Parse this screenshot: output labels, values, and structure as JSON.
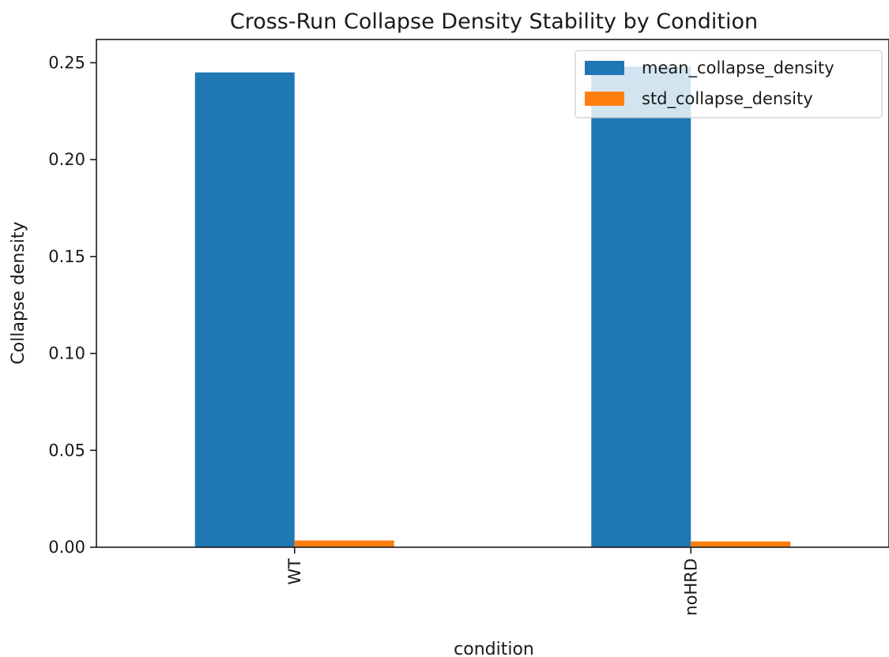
{
  "chart_data": {
    "type": "bar",
    "title": "Cross-Run Collapse Density Stability by Condition",
    "xlabel": "condition",
    "ylabel": "Collapse density",
    "categories": [
      "WT",
      "noHRD"
    ],
    "series": [
      {
        "name": "mean_collapse_density",
        "values": [
          0.245,
          0.248
        ],
        "color": "#1f77b4"
      },
      {
        "name": "std_collapse_density",
        "values": [
          0.0035,
          0.003
        ],
        "color": "#ff7f0e"
      }
    ],
    "ylim": [
      0,
      0.262
    ],
    "yticks": [
      "0.00",
      "0.05",
      "0.10",
      "0.15",
      "0.20",
      "0.25"
    ],
    "ytick_values": [
      0,
      0.05,
      0.1,
      0.15,
      0.2,
      0.25
    ],
    "grid": false,
    "legend_position": "top-right",
    "xtick_rotation": "vertical"
  }
}
